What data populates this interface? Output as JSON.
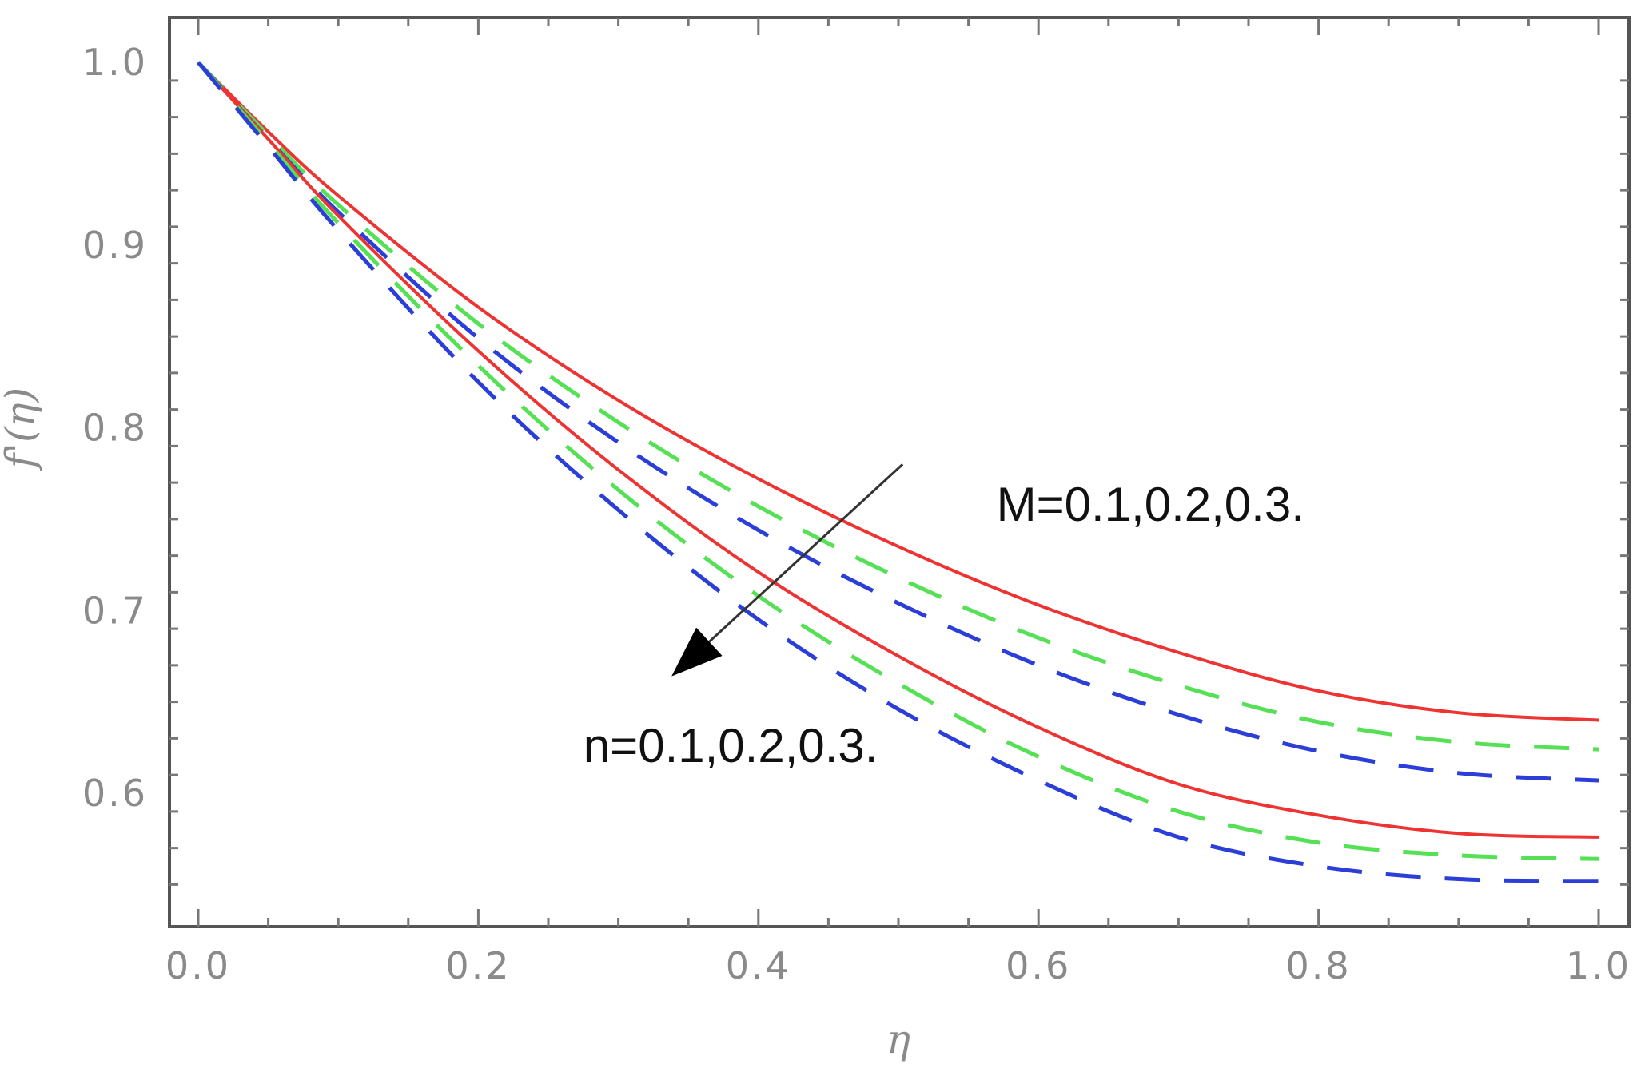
{
  "chart_data": {
    "type": "line",
    "xlabel": "η",
    "ylabel": "f'(η)",
    "xlim": [
      0,
      1.0
    ],
    "ylim": [
      0.545,
      1.02
    ],
    "xticks": [
      "0.0",
      "0.2",
      "0.4",
      "0.6",
      "0.8",
      "1.0"
    ],
    "yticks": [
      "0.6",
      "0.7",
      "0.8",
      "0.9",
      "1.0"
    ],
    "grid": false,
    "colors": {
      "solid": "#ee3333",
      "green": "#55e055",
      "blue": "#2b3fd8",
      "frame": "#555555",
      "arrow": "#333333"
    },
    "annotations": [
      {
        "text": "M=0.1,0.2,0.3.",
        "x": 0.57,
        "y": 0.749
      },
      {
        "text": "n=0.1,0.2,0.3.",
        "x": 0.275,
        "y": 0.617
      }
    ],
    "arrow": {
      "from": [
        0.503,
        0.78
      ],
      "to": [
        0.338,
        0.664
      ]
    },
    "series": [
      {
        "style": "solid",
        "color": "#ee3333",
        "x": [
          0,
          0.05,
          0.1,
          0.2,
          0.3,
          0.4,
          0.5,
          0.6,
          0.7,
          0.8,
          0.9,
          1.0
        ],
        "y": [
          1.0,
          0.962,
          0.927,
          0.866,
          0.815,
          0.772,
          0.735,
          0.703,
          0.677,
          0.656,
          0.644,
          0.64
        ]
      },
      {
        "style": "dashed",
        "color": "#55e055",
        "x": [
          0,
          0.05,
          0.1,
          0.2,
          0.3,
          0.4,
          0.5,
          0.6,
          0.7,
          0.8,
          0.9,
          1.0
        ],
        "y": [
          1.0,
          0.96,
          0.922,
          0.857,
          0.803,
          0.757,
          0.718,
          0.685,
          0.659,
          0.639,
          0.628,
          0.624
        ]
      },
      {
        "style": "dashed",
        "color": "#2b3fd8",
        "x": [
          0,
          0.05,
          0.1,
          0.2,
          0.3,
          0.4,
          0.5,
          0.6,
          0.7,
          0.8,
          0.9,
          1.0
        ],
        "y": [
          1.0,
          0.958,
          0.918,
          0.849,
          0.792,
          0.744,
          0.704,
          0.67,
          0.643,
          0.623,
          0.611,
          0.607
        ]
      },
      {
        "style": "solid",
        "color": "#ee3333",
        "x": [
          0,
          0.05,
          0.1,
          0.2,
          0.3,
          0.4,
          0.5,
          0.6,
          0.7,
          0.8,
          0.9,
          1.0
        ],
        "y": [
          1.0,
          0.958,
          0.916,
          0.842,
          0.777,
          0.721,
          0.675,
          0.636,
          0.605,
          0.588,
          0.578,
          0.576
        ]
      },
      {
        "style": "dashed",
        "color": "#55e055",
        "x": [
          0,
          0.05,
          0.1,
          0.2,
          0.3,
          0.4,
          0.5,
          0.6,
          0.7,
          0.8,
          0.9,
          1.0
        ],
        "y": [
          1.0,
          0.956,
          0.912,
          0.834,
          0.766,
          0.708,
          0.66,
          0.62,
          0.59,
          0.573,
          0.566,
          0.564
        ]
      },
      {
        "style": "dashed",
        "color": "#2b3fd8",
        "x": [
          0,
          0.05,
          0.1,
          0.2,
          0.3,
          0.4,
          0.5,
          0.6,
          0.7,
          0.8,
          0.9,
          1.0
        ],
        "y": [
          1.0,
          0.954,
          0.908,
          0.825,
          0.755,
          0.695,
          0.646,
          0.607,
          0.576,
          0.56,
          0.553,
          0.552
        ]
      }
    ]
  }
}
